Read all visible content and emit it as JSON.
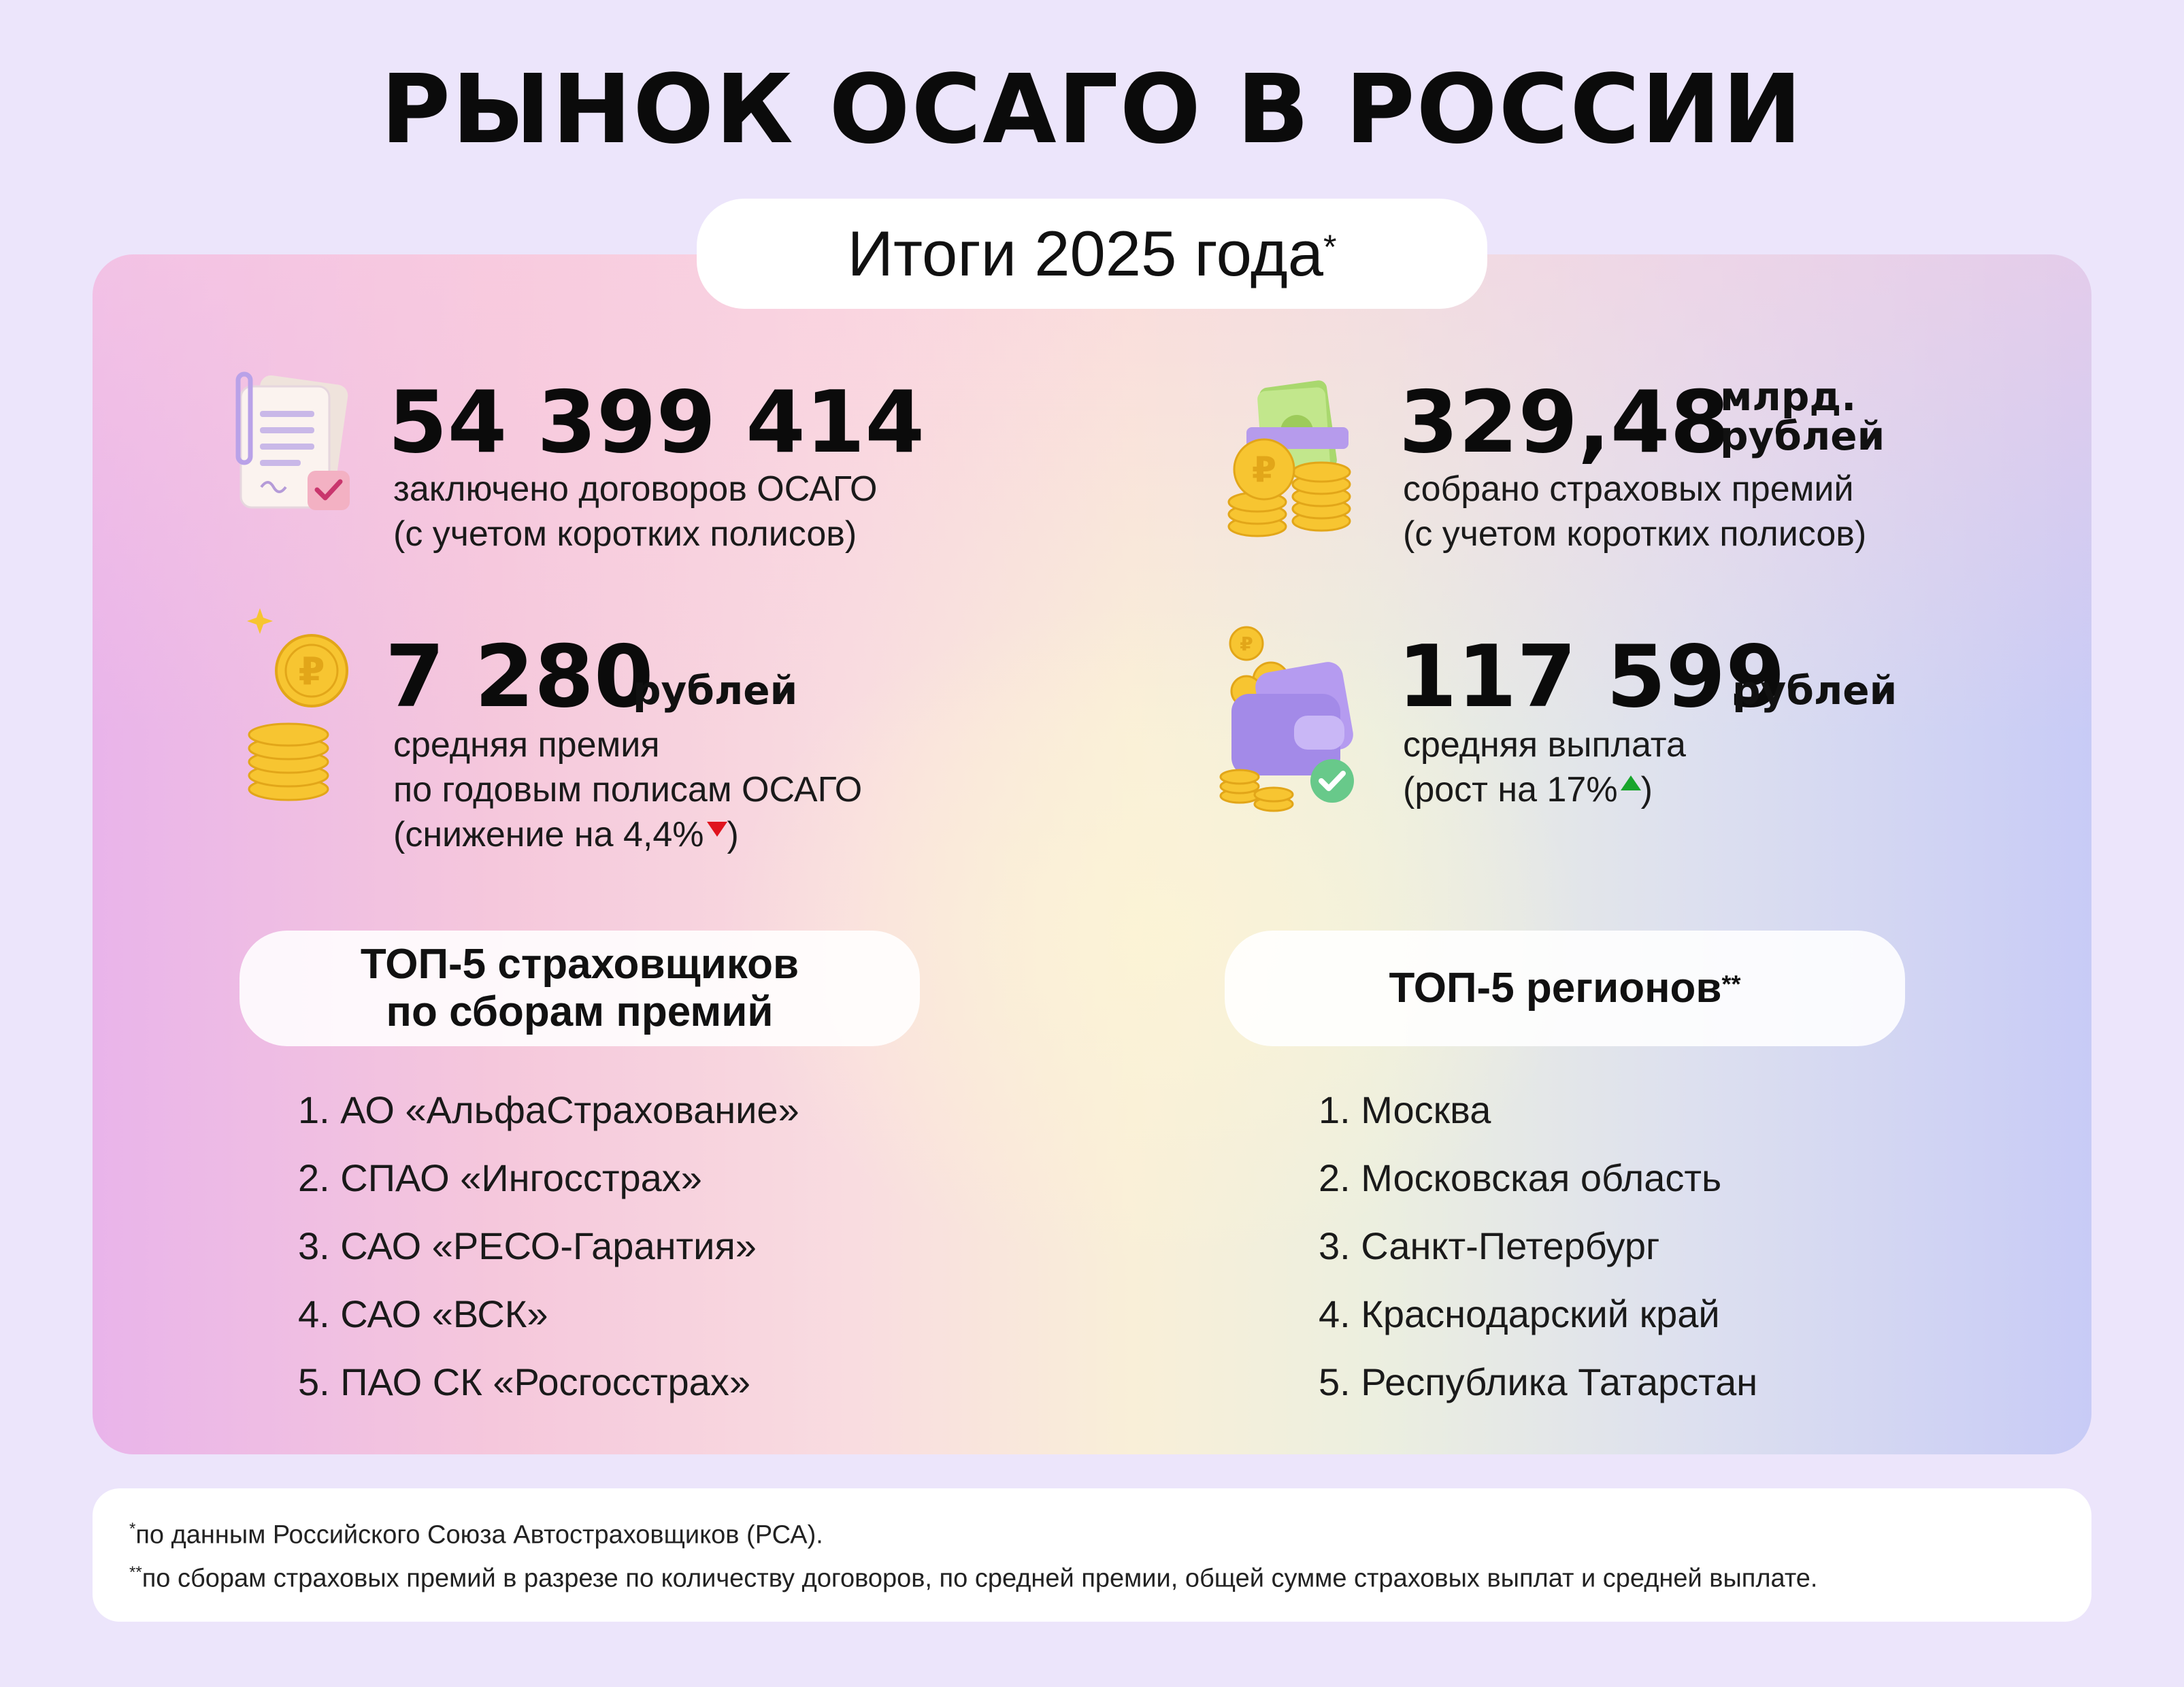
{
  "title": "РЫНОК ОСАГО В РОССИИ",
  "subtitle": {
    "text": "Итоги 2025 года",
    "mark": "*"
  },
  "stats": {
    "contracts": {
      "value": "54 399 414",
      "line1": "заключено договоров ОСАГО",
      "line2": "(с учетом коротких полисов)"
    },
    "premiums": {
      "value": "329,48",
      "unit_line1": "млрд.",
      "unit_line2": "рублей",
      "line1": "собрано страховых премий",
      "line2": "(с учетом коротких полисов)"
    },
    "avg_premium": {
      "value": "7 280",
      "unit": "рублей",
      "line1": "средняя премия",
      "line2": "по годовым полисам ОСАГО",
      "line3": "(снижение на 4,4%",
      "close": ")"
    },
    "avg_payout": {
      "value": "117 599",
      "unit": "рублей",
      "line1": "средняя выплата",
      "line2": "(рост на 17%",
      "close": ")"
    }
  },
  "insurers": {
    "heading_line1": "ТОП-5 страховщиков",
    "heading_line2": "по сборам премий",
    "items": [
      "1. АО «АльфаСтрахование»",
      "2. СПАО «Ингосстрах»",
      "3. САО «РЕСО-Гарантия»",
      "4. САО «ВСК»",
      "5. ПАО СК «Росгосстрах»"
    ]
  },
  "regions": {
    "heading": "ТОП-5 регионов",
    "mark": "**",
    "items": [
      "1. Москва",
      "2. Московская область",
      "3. Санкт-Петербург",
      "4. Краснодарский край",
      "5. Республика Татарстан"
    ]
  },
  "footnotes": {
    "note1_mark": "*",
    "note1": "по данным Российского Союза Автостраховщиков (РСА).",
    "note2_mark": "**",
    "note2": "по сборам страховых премий в разрезе по количеству договоров, по средней премии, общей сумме страховых выплат и средней выплате."
  },
  "icons": [
    "document-check-icon",
    "money-coins-icon",
    "ruble-coin-stack-icon",
    "wallet-coins-icon"
  ],
  "colors": {
    "decrease": "#e0141e",
    "increase": "#18a52c",
    "coin": "#f7c531",
    "background": "#ece5fb"
  }
}
